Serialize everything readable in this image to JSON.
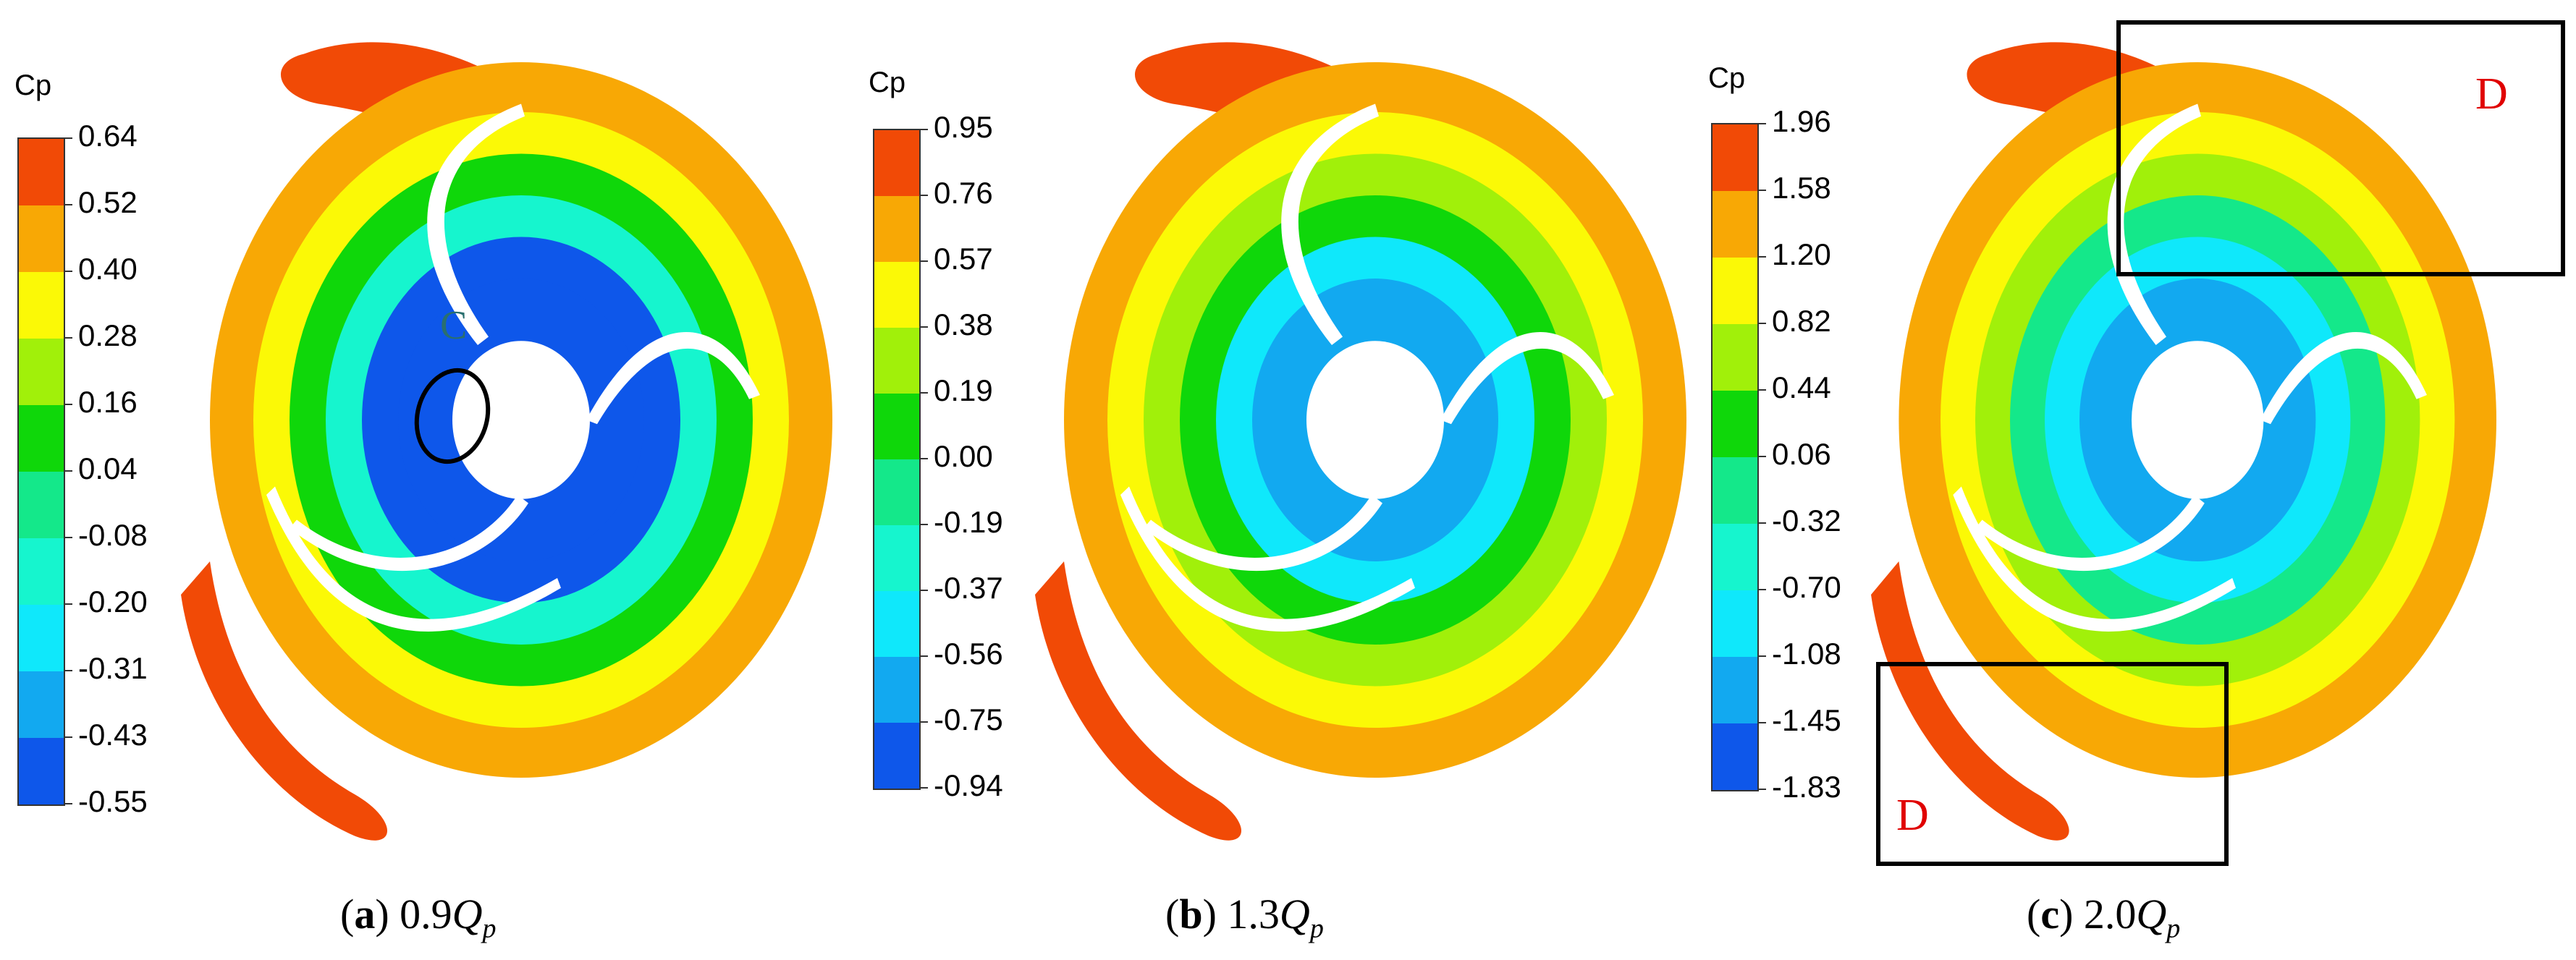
{
  "figure": {
    "legend_title": "Cp",
    "color_bands": [
      "#f14a06",
      "#f8a805",
      "#fbf906",
      "#a1f00a",
      "#0fd70a",
      "#14e88a",
      "#16f5ce",
      "#0fe8fb",
      "#12a9f0",
      "#0e57ea"
    ],
    "panels": [
      {
        "id": "a",
        "caption_letter": "a",
        "caption_value": "0.9",
        "caption_var": "Q",
        "caption_sub": "p",
        "ticks": [
          "0.64",
          "0.52",
          "0.40",
          "0.28",
          "0.16",
          "0.04",
          "-0.08",
          "-0.20",
          "-0.31",
          "-0.43",
          "-0.55"
        ],
        "annotation": "C"
      },
      {
        "id": "b",
        "caption_letter": "b",
        "caption_value": "1.3",
        "caption_var": "Q",
        "caption_sub": "p",
        "ticks": [
          "0.95",
          "0.76",
          "0.57",
          "0.38",
          "0.19",
          "0.00",
          "-0.19",
          "-0.37",
          "-0.56",
          "-0.75",
          "-0.94"
        ]
      },
      {
        "id": "c",
        "caption_letter": "c",
        "caption_value": "2.0",
        "caption_var": "Q",
        "caption_sub": "p",
        "ticks": [
          "1.96",
          "1.58",
          "1.20",
          "0.82",
          "0.44",
          "0.06",
          "-0.32",
          "-0.70",
          "-1.08",
          "-1.45",
          "-1.83"
        ],
        "annotations": [
          "D",
          "D"
        ]
      }
    ]
  }
}
